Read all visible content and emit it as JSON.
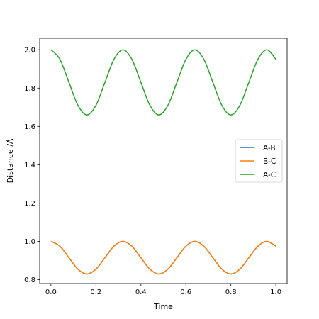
{
  "chart_data": {
    "type": "line",
    "xlabel": "Time",
    "ylabel": "Distance /Å",
    "xlim": [
      -0.05,
      1.05
    ],
    "ylim": [
      0.78,
      2.06
    ],
    "x_ticks": [
      "0.0",
      "0.2",
      "0.4",
      "0.6",
      "0.8",
      "1.0"
    ],
    "y_ticks": [
      "0.8",
      "1.0",
      "1.2",
      "1.4",
      "1.6",
      "1.8",
      "2.0"
    ],
    "grid": false,
    "legend_position": "center-right",
    "x": [
      0,
      0.04,
      0.08,
      0.12,
      0.16,
      0.2,
      0.24,
      0.28,
      0.32,
      0.36,
      0.4,
      0.44,
      0.48,
      0.52,
      0.56,
      0.6,
      0.64,
      0.68,
      0.72,
      0.76,
      0.8,
      0.84,
      0.88,
      0.92,
      0.96,
      1.0
    ],
    "series": [
      {
        "name": "A-B",
        "color": "#1f77b4",
        "values": [
          1.0,
          0.975,
          0.915,
          0.855,
          0.83,
          0.855,
          0.915,
          0.975,
          1.0,
          0.975,
          0.915,
          0.855,
          0.83,
          0.855,
          0.915,
          0.975,
          1.0,
          0.975,
          0.915,
          0.855,
          0.83,
          0.855,
          0.915,
          0.975,
          1.0,
          0.975
        ]
      },
      {
        "name": "B-C",
        "color": "#ff7f0e",
        "values": [
          1.0,
          0.975,
          0.915,
          0.855,
          0.83,
          0.855,
          0.915,
          0.975,
          1.0,
          0.975,
          0.915,
          0.855,
          0.83,
          0.855,
          0.915,
          0.975,
          1.0,
          0.975,
          0.915,
          0.855,
          0.83,
          0.855,
          0.915,
          0.975,
          1.0,
          0.975
        ]
      },
      {
        "name": "A-C",
        "color": "#2ca02c",
        "values": [
          2.0,
          1.95,
          1.83,
          1.71,
          1.66,
          1.71,
          1.83,
          1.95,
          2.0,
          1.95,
          1.83,
          1.71,
          1.66,
          1.71,
          1.83,
          1.95,
          2.0,
          1.95,
          1.83,
          1.71,
          1.66,
          1.71,
          1.83,
          1.95,
          2.0,
          1.95
        ]
      }
    ]
  }
}
